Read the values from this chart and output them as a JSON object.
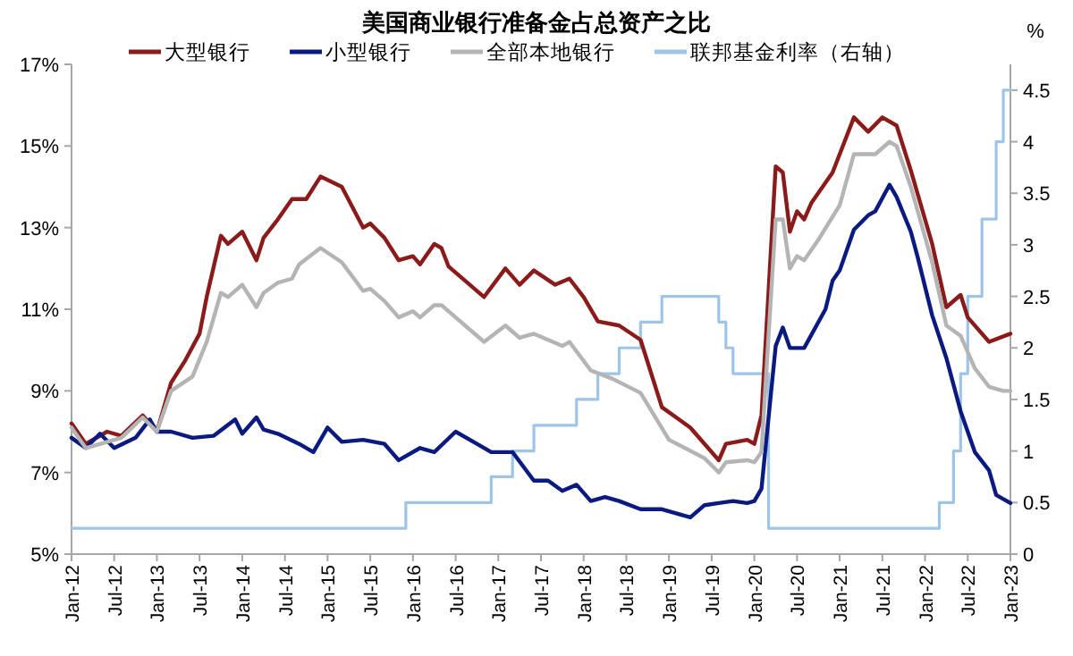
{
  "chart_data": {
    "type": "line",
    "title": "美国商业银行准备金占总资产之比",
    "y2label": "%",
    "legend": "top",
    "grid": false,
    "marker": "none",
    "line_style": "solid",
    "xlim": [
      "2012-01",
      "2023-01"
    ],
    "xticks": [
      {
        "value": "2012-01",
        "label": "Jan-12"
      },
      {
        "value": "2012-07",
        "label": "Jul-12"
      },
      {
        "value": "2013-01",
        "label": "Jan-13"
      },
      {
        "value": "2013-07",
        "label": "Jul-13"
      },
      {
        "value": "2014-01",
        "label": "Jan-14"
      },
      {
        "value": "2014-07",
        "label": "Jul-14"
      },
      {
        "value": "2015-01",
        "label": "Jan-15"
      },
      {
        "value": "2015-07",
        "label": "Jul-15"
      },
      {
        "value": "2016-01",
        "label": "Jan-16"
      },
      {
        "value": "2016-07",
        "label": "Jul-16"
      },
      {
        "value": "2017-01",
        "label": "Jan-17"
      },
      {
        "value": "2017-07",
        "label": "Jul-17"
      },
      {
        "value": "2018-01",
        "label": "Jan-18"
      },
      {
        "value": "2018-07",
        "label": "Jul-18"
      },
      {
        "value": "2019-01",
        "label": "Jan-19"
      },
      {
        "value": "2019-07",
        "label": "Jul-19"
      },
      {
        "value": "2020-01",
        "label": "Jan-20"
      },
      {
        "value": "2020-07",
        "label": "Jul-20"
      },
      {
        "value": "2021-01",
        "label": "Jan-21"
      },
      {
        "value": "2021-07",
        "label": "Jul-21"
      },
      {
        "value": "2022-01",
        "label": "Jan-22"
      },
      {
        "value": "2022-07",
        "label": "Jul-22"
      },
      {
        "value": "2023-01",
        "label": "Jan-23"
      }
    ],
    "ylim": [
      5,
      17
    ],
    "yticks": [
      {
        "value": 5,
        "label": "5%"
      },
      {
        "value": 7,
        "label": "7%"
      },
      {
        "value": 9,
        "label": "9%"
      },
      {
        "value": 11,
        "label": "11%"
      },
      {
        "value": 13,
        "label": "13%"
      },
      {
        "value": 15,
        "label": "15%"
      },
      {
        "value": 17,
        "label": "17%"
      }
    ],
    "y2lim": [
      0,
      4.75
    ],
    "y2ticks": [
      0,
      0.5,
      1,
      1.5,
      2,
      2.5,
      3,
      3.5,
      4,
      4.5
    ],
    "series": [
      {
        "name": "大型银行",
        "color": "#8b1a1a",
        "x": [
          "2012-01",
          "2012-03",
          "2012-06",
          "2012-08",
          "2012-11",
          "2013-01",
          "2013-03",
          "2013-05",
          "2013-07",
          "2013-08",
          "2013-10",
          "2013-11",
          "2014-01",
          "2014-03",
          "2014-04",
          "2014-06",
          "2014-08",
          "2014-10",
          "2014-12",
          "2015-03",
          "2015-06",
          "2015-07",
          "2015-09",
          "2015-11",
          "2016-01",
          "2016-02",
          "2016-04",
          "2016-05",
          "2016-06",
          "2016-11",
          "2017-02",
          "2017-04",
          "2017-06",
          "2017-09",
          "2017-11",
          "2018-01",
          "2018-03",
          "2018-06",
          "2018-09",
          "2018-12",
          "2019-04",
          "2019-06",
          "2019-08",
          "2019-09",
          "2019-12",
          "2020-01",
          "2020-02",
          "2020-04",
          "2020-05",
          "2020-06",
          "2020-07",
          "2020-08",
          "2020-09",
          "2020-12",
          "2021-03",
          "2021-05",
          "2021-07",
          "2021-09",
          "2021-10",
          "2021-11",
          "2022-02",
          "2022-04",
          "2022-06",
          "2022-07",
          "2022-10",
          "2023-01"
        ],
        "values": [
          8.2,
          7.7,
          8.0,
          7.9,
          8.4,
          8.0,
          9.2,
          9.75,
          10.4,
          11.3,
          12.8,
          12.6,
          12.9,
          12.2,
          12.75,
          13.2,
          13.7,
          13.7,
          14.25,
          14.0,
          13.0,
          13.1,
          12.75,
          12.2,
          12.3,
          12.1,
          12.6,
          12.5,
          12.05,
          11.3,
          12.0,
          11.6,
          11.95,
          11.6,
          11.75,
          11.3,
          10.7,
          10.6,
          10.25,
          8.6,
          8.1,
          7.7,
          7.3,
          7.7,
          7.8,
          7.7,
          8.4,
          14.5,
          14.35,
          12.9,
          13.4,
          13.2,
          13.6,
          14.35,
          15.7,
          15.35,
          15.7,
          15.5,
          14.95,
          14.4,
          12.6,
          11.05,
          11.35,
          10.8,
          10.2,
          10.4
        ]
      },
      {
        "name": "小型银行",
        "color": "#0a1a80",
        "x": [
          "2012-01",
          "2012-03",
          "2012-05",
          "2012-07",
          "2012-10",
          "2012-12",
          "2013-01",
          "2013-03",
          "2013-06",
          "2013-09",
          "2013-12",
          "2014-01",
          "2014-03",
          "2014-04",
          "2014-06",
          "2014-09",
          "2014-11",
          "2015-01",
          "2015-03",
          "2015-06",
          "2015-09",
          "2015-11",
          "2016-02",
          "2016-04",
          "2016-07",
          "2016-10",
          "2016-12",
          "2017-03",
          "2017-06",
          "2017-08",
          "2017-10",
          "2017-12",
          "2018-02",
          "2018-04",
          "2018-06",
          "2018-09",
          "2018-12",
          "2019-02",
          "2019-04",
          "2019-06",
          "2019-08",
          "2019-10",
          "2019-12",
          "2020-01",
          "2020-02",
          "2020-04",
          "2020-05",
          "2020-06",
          "2020-08",
          "2020-11",
          "2020-12",
          "2021-01",
          "2021-03",
          "2021-05",
          "2021-06",
          "2021-08",
          "2021-09",
          "2021-11",
          "2021-12",
          "2022-02",
          "2022-04",
          "2022-06",
          "2022-08",
          "2022-10",
          "2022-11",
          "2023-01"
        ],
        "values": [
          7.85,
          7.6,
          7.95,
          7.6,
          7.85,
          8.3,
          8.0,
          8.0,
          7.85,
          7.9,
          8.3,
          7.95,
          8.35,
          8.05,
          7.95,
          7.7,
          7.5,
          8.1,
          7.75,
          7.8,
          7.7,
          7.3,
          7.6,
          7.5,
          8.0,
          7.7,
          7.5,
          7.5,
          6.8,
          6.8,
          6.55,
          6.7,
          6.3,
          6.4,
          6.3,
          6.1,
          6.1,
          6.0,
          5.9,
          6.2,
          6.25,
          6.3,
          6.25,
          6.3,
          6.6,
          10.1,
          10.55,
          10.05,
          10.05,
          11.0,
          11.7,
          11.95,
          12.95,
          13.3,
          13.4,
          14.05,
          13.75,
          12.9,
          12.25,
          10.85,
          9.8,
          8.5,
          7.5,
          7.05,
          6.45,
          6.25
        ]
      },
      {
        "name": "全部本地银行",
        "color": "#b4b4b4",
        "x": [
          "2012-01",
          "2012-03",
          "2012-08",
          "2012-11",
          "2013-01",
          "2013-03",
          "2013-06",
          "2013-08",
          "2013-10",
          "2013-11",
          "2014-01",
          "2014-03",
          "2014-04",
          "2014-06",
          "2014-08",
          "2014-09",
          "2014-12",
          "2015-03",
          "2015-06",
          "2015-07",
          "2015-09",
          "2015-11",
          "2016-01",
          "2016-02",
          "2016-04",
          "2016-05",
          "2016-07",
          "2016-11",
          "2017-02",
          "2017-04",
          "2017-06",
          "2017-10",
          "2017-11",
          "2018-02",
          "2018-05",
          "2018-09",
          "2019-01",
          "2019-06",
          "2019-08",
          "2019-09",
          "2019-12",
          "2020-01",
          "2020-02",
          "2020-04",
          "2020-05",
          "2020-06",
          "2020-07",
          "2020-08",
          "2020-10",
          "2021-01",
          "2021-03",
          "2021-06",
          "2021-08",
          "2021-09",
          "2021-11",
          "2022-02",
          "2022-04",
          "2022-06",
          "2022-08",
          "2022-10",
          "2022-12",
          "2023-01"
        ],
        "values": [
          8.1,
          7.6,
          7.85,
          8.35,
          8.0,
          9.0,
          9.35,
          10.2,
          11.4,
          11.3,
          11.6,
          11.05,
          11.4,
          11.65,
          11.75,
          12.1,
          12.5,
          12.15,
          11.45,
          11.5,
          11.2,
          10.8,
          10.95,
          10.8,
          11.1,
          11.1,
          10.8,
          10.2,
          10.6,
          10.3,
          10.4,
          10.1,
          10.2,
          9.5,
          9.3,
          8.95,
          7.8,
          7.35,
          7.0,
          7.25,
          7.3,
          7.25,
          7.5,
          13.2,
          13.2,
          12.0,
          12.3,
          12.2,
          12.7,
          13.55,
          14.8,
          14.8,
          15.1,
          15.0,
          14.0,
          12.15,
          10.6,
          10.35,
          9.55,
          9.1,
          9.0,
          9.0
        ]
      },
      {
        "name": "联邦基金利率（右轴）",
        "color": "#9ec5e8",
        "type": "step",
        "axis": "y2",
        "x": [
          "2012-01",
          "2015-12",
          "2016-12",
          "2017-03",
          "2017-06",
          "2017-12",
          "2018-03",
          "2018-06",
          "2018-09",
          "2018-12",
          "2019-08",
          "2019-09",
          "2019-10",
          "2020-03",
          "2022-03",
          "2022-05",
          "2022-06",
          "2022-07",
          "2022-09",
          "2022-11",
          "2022-12",
          "2023-01"
        ],
        "values": [
          0.25,
          0.5,
          0.75,
          1.0,
          1.25,
          1.5,
          1.75,
          2.0,
          2.25,
          2.5,
          2.25,
          2.0,
          1.75,
          0.25,
          0.5,
          1.0,
          1.75,
          2.5,
          3.25,
          4.0,
          4.5,
          4.5
        ]
      }
    ]
  }
}
